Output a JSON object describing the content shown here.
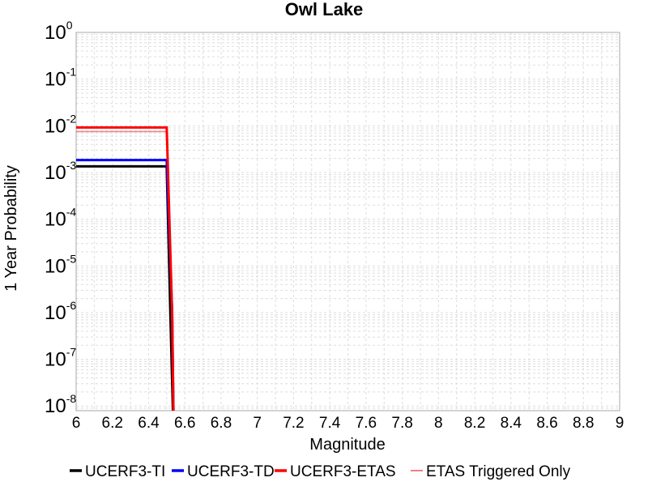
{
  "chart_data": {
    "type": "line",
    "title": "Owl Lake",
    "xlabel": "Magnitude",
    "ylabel": "1 Year Probability",
    "xlim": [
      6,
      9
    ],
    "ylim": [
      -8.1,
      0
    ],
    "yscale": "log",
    "grid": true,
    "legend_position": "bottom",
    "x_ticks": [
      "6",
      "6.2",
      "6.4",
      "6.6",
      "6.8",
      "7",
      "7.2",
      "7.4",
      "7.6",
      "7.8",
      "8",
      "8.2",
      "8.4",
      "8.6",
      "8.8",
      "9"
    ],
    "y_ticks": [
      {
        "base": "10",
        "exp": "-8"
      },
      {
        "base": "10",
        "exp": "-7"
      },
      {
        "base": "10",
        "exp": "-6"
      },
      {
        "base": "10",
        "exp": "-5"
      },
      {
        "base": "10",
        "exp": "-4"
      },
      {
        "base": "10",
        "exp": "-3"
      },
      {
        "base": "10",
        "exp": "-2"
      },
      {
        "base": "10",
        "exp": "-1"
      },
      {
        "base": "10",
        "exp": "0"
      }
    ],
    "series": [
      {
        "name": "UCERF3-TI",
        "color": "#000000",
        "x": [
          6.0,
          6.5,
          6.52,
          6.54
        ],
        "y": [
          0.00135,
          0.00135,
          1e-06,
          1e-09
        ]
      },
      {
        "name": "UCERF3-TD",
        "color": "#0000ff",
        "x": [
          6.0,
          6.5,
          6.53,
          6.54
        ],
        "y": [
          0.00185,
          0.00185,
          1e-06,
          1e-09
        ]
      },
      {
        "name": "UCERF3-ETAS",
        "color": "#ff0000",
        "x": [
          6.0,
          6.5,
          6.53,
          6.54
        ],
        "y": [
          0.0092,
          0.0092,
          1e-06,
          1e-09
        ]
      },
      {
        "name": "ETAS Triggered Only",
        "color": "#f08080",
        "x": [
          6.0,
          6.5,
          6.53,
          6.54
        ],
        "y": [
          0.0075,
          0.0075,
          1e-06,
          1e-09
        ]
      }
    ]
  }
}
